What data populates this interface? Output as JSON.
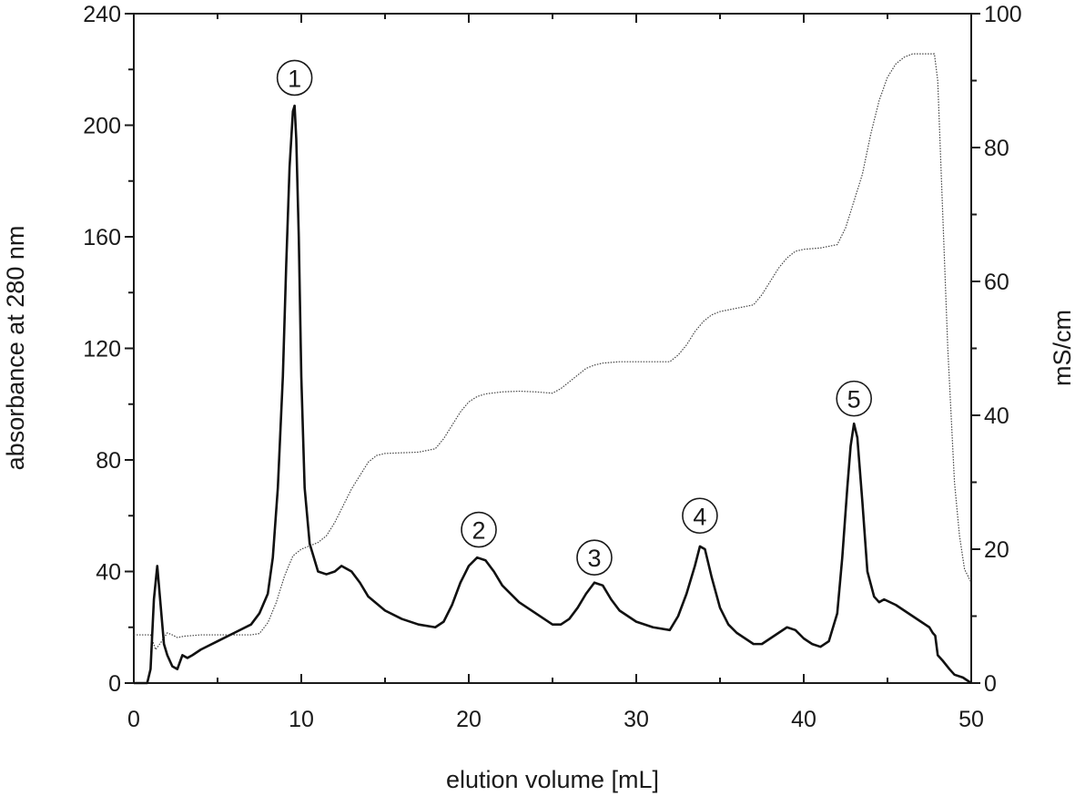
{
  "chart_data": {
    "type": "line",
    "xlabel": "elution volume [mL]",
    "ylabel": "absorbance at 280 nm",
    "y2label": "mS/cm",
    "xlim": [
      0,
      50
    ],
    "ylim": [
      0,
      240
    ],
    "y2lim": [
      0,
      100
    ],
    "x_ticks": [
      "0",
      "10",
      "20",
      "30",
      "40",
      "50"
    ],
    "y_ticks": [
      "0",
      "40",
      "80",
      "120",
      "160",
      "200",
      "240"
    ],
    "y2_ticks": [
      "0",
      "20",
      "40",
      "60",
      "80",
      "100"
    ],
    "grid": false,
    "legend": "none",
    "series": [
      {
        "axis": "left",
        "style": "solid",
        "color": "#111111",
        "x": [
          0,
          0.8,
          1.0,
          1.2,
          1.4,
          1.6,
          1.8,
          2.0,
          2.3,
          2.6,
          2.9,
          3.2,
          3.5,
          4,
          5,
          6,
          7,
          7.5,
          8,
          8.3,
          8.6,
          8.9,
          9.1,
          9.3,
          9.5,
          9.6,
          9.7,
          9.85,
          10.0,
          10.2,
          10.5,
          11,
          11.5,
          12,
          12.4,
          12.7,
          13,
          13.5,
          14,
          15,
          16,
          17,
          18,
          18.5,
          19,
          19.5,
          20,
          20.5,
          21,
          21.5,
          22,
          23,
          24,
          25,
          25.5,
          26,
          26.5,
          27,
          27.5,
          28,
          28.5,
          29,
          30,
          31,
          32,
          32.5,
          33,
          33.5,
          33.8,
          34.1,
          34.5,
          35,
          35.5,
          36,
          36.5,
          37,
          37.5,
          38,
          38.5,
          39,
          39.5,
          40,
          40.5,
          41,
          41.5,
          42,
          42.3,
          42.6,
          42.8,
          43.0,
          43.2,
          43.5,
          43.8,
          44.2,
          44.5,
          44.8,
          45.5,
          46,
          46.5,
          47,
          47.5,
          47.7,
          47.85,
          48,
          48.3,
          48.7,
          49,
          49.5,
          50
        ],
        "values": [
          0,
          0,
          5,
          30,
          42,
          28,
          14,
          10,
          6,
          5,
          10,
          9,
          10,
          12,
          15,
          18,
          21,
          25,
          32,
          45,
          70,
          110,
          150,
          185,
          205,
          207,
          195,
          160,
          110,
          70,
          50,
          40,
          39,
          40,
          42,
          41,
          40,
          36,
          31,
          26,
          23,
          21,
          20,
          22,
          28,
          36,
          42,
          45,
          44,
          40,
          35,
          29,
          25,
          21,
          21,
          23,
          27,
          32,
          36,
          35,
          30,
          26,
          22,
          20,
          19,
          24,
          32,
          42,
          49,
          48,
          38,
          27,
          21,
          18,
          16,
          14,
          14,
          16,
          18,
          20,
          19,
          16,
          14,
          13,
          15,
          25,
          45,
          70,
          85,
          93,
          88,
          65,
          40,
          31,
          29,
          30,
          28,
          26,
          24,
          22,
          20,
          18,
          17,
          10,
          8,
          5,
          3,
          2,
          0
        ]
      },
      {
        "axis": "right",
        "style": "dotted",
        "color": "#444444",
        "x": [
          0,
          1.0,
          1.3,
          1.6,
          2.0,
          2.3,
          2.6,
          3.0,
          4,
          5,
          6,
          7,
          7.5,
          8,
          8.5,
          9,
          9.5,
          10,
          10.5,
          11,
          11.5,
          12,
          12.5,
          13,
          13.5,
          14,
          14.5,
          15,
          16,
          17,
          18,
          18.5,
          19,
          19.5,
          20,
          20.5,
          21,
          22,
          23,
          24,
          25,
          25.5,
          26,
          26.5,
          27,
          27.5,
          28,
          29,
          30,
          31,
          32,
          32.5,
          33,
          33.5,
          34,
          34.5,
          35,
          36,
          37,
          37.5,
          38,
          38.5,
          39,
          39.5,
          40,
          41,
          42,
          42.5,
          43,
          43.5,
          44,
          44.5,
          45,
          45.5,
          46,
          46.5,
          47,
          47.5,
          47.8,
          48,
          48.3,
          48.6,
          49,
          49.3,
          49.6,
          50
        ],
        "values": [
          7.2,
          7.2,
          5,
          6,
          7.5,
          7.2,
          6.8,
          7.0,
          7.2,
          7.2,
          7.2,
          7.2,
          7.4,
          9,
          12,
          16,
          19,
          20,
          20.5,
          21,
          22,
          24,
          26.5,
          29,
          31,
          33,
          34,
          34.3,
          34.4,
          34.5,
          35,
          36.5,
          38.5,
          40.5,
          42,
          42.8,
          43.2,
          43.5,
          43.6,
          43.5,
          43.3,
          44,
          45,
          46,
          47,
          47.5,
          47.8,
          48,
          48,
          48,
          48,
          49,
          50.5,
          52.5,
          54,
          55,
          55.5,
          56,
          56.5,
          58,
          60,
          62,
          63.5,
          64.5,
          64.8,
          65,
          65.5,
          68,
          72,
          76,
          82,
          87,
          90.5,
          92.5,
          93.5,
          94,
          94,
          94,
          94,
          90,
          70,
          50,
          30,
          22,
          17,
          15
        ]
      }
    ],
    "annotations": [
      {
        "text": "1",
        "x": 9.6,
        "y": 217
      },
      {
        "text": "2",
        "x": 20.6,
        "y": 55
      },
      {
        "text": "3",
        "x": 27.5,
        "y": 45
      },
      {
        "text": "4",
        "x": 33.8,
        "y": 60
      },
      {
        "text": "5",
        "x": 43.0,
        "y": 102
      }
    ]
  }
}
